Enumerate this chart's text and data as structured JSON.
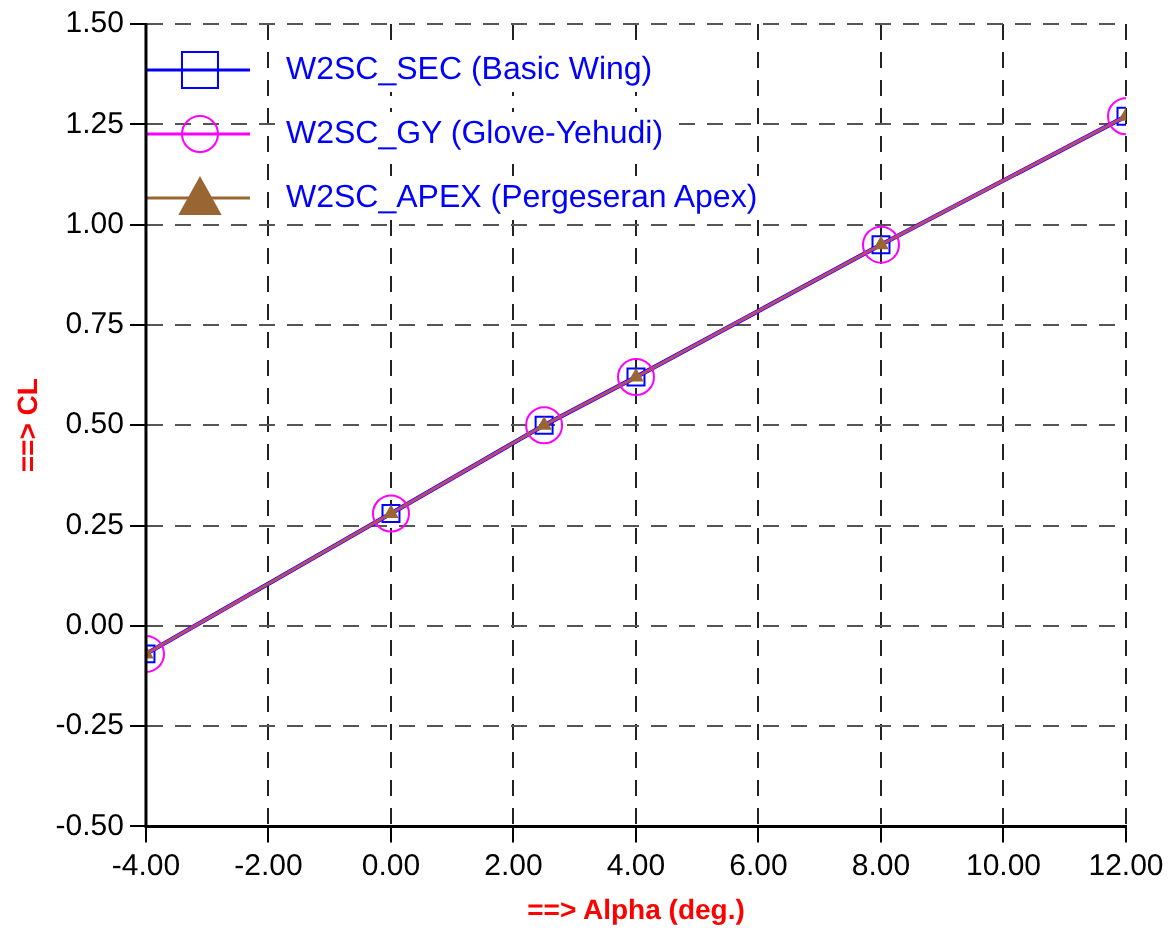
{
  "chart_data": {
    "type": "line",
    "xlabel": "==> Alpha (deg.)",
    "ylabel": "==> CL",
    "x": [
      -4,
      0,
      2.5,
      4,
      8,
      12
    ],
    "series": [
      {
        "name": "W2SC_SEC (Basic Wing)",
        "color": "#0000ff",
        "marker": "square",
        "values": [
          -0.07,
          0.28,
          0.5,
          0.62,
          0.95,
          1.27
        ]
      },
      {
        "name": "W2SC_GY (Glove-Yehudi)",
        "color": "#ff00ff",
        "marker": "circle",
        "values": [
          -0.07,
          0.28,
          0.5,
          0.62,
          0.95,
          1.27
        ]
      },
      {
        "name": "W2SC_APEX (Pergeseran Apex)",
        "color": "#996633",
        "marker": "triangle",
        "values": [
          -0.07,
          0.28,
          0.5,
          0.62,
          0.95,
          1.27
        ]
      }
    ],
    "xlim": [
      -4,
      12
    ],
    "xticks": [
      {
        "value": -4,
        "label": "-4.00"
      },
      {
        "value": -2,
        "label": "-2.00"
      },
      {
        "value": 0,
        "label": "0.00"
      },
      {
        "value": 2,
        "label": "2.00"
      },
      {
        "value": 4,
        "label": "4.00"
      },
      {
        "value": 6,
        "label": "6.00"
      },
      {
        "value": 8,
        "label": "8.00"
      },
      {
        "value": 10,
        "label": "10.00"
      },
      {
        "value": 12,
        "label": "12.00"
      }
    ],
    "ylim": [
      -0.5,
      1.5
    ],
    "yticks": [
      {
        "value": -0.5,
        "label": "-0.50"
      },
      {
        "value": -0.25,
        "label": "-0.25"
      },
      {
        "value": 0,
        "label": "0.00"
      },
      {
        "value": 0.25,
        "label": "0.25"
      },
      {
        "value": 0.5,
        "label": "0.50"
      },
      {
        "value": 0.75,
        "label": "0.75"
      },
      {
        "value": 1,
        "label": "1.00"
      },
      {
        "value": 1.25,
        "label": "1.25"
      },
      {
        "value": 1.5,
        "label": "1.50"
      }
    ],
    "grid": true,
    "legend": "top left",
    "line_style": "solid"
  }
}
